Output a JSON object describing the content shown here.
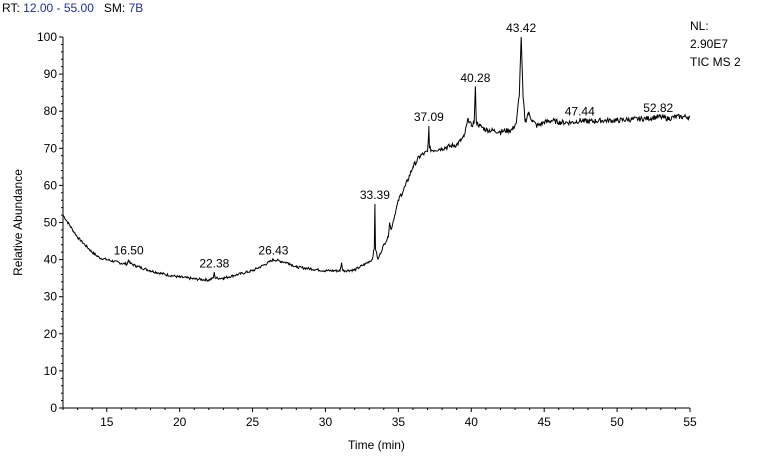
{
  "header": {
    "rt_label": "RT:",
    "rt_value": "12.00 - 55.00",
    "sm_label": "SM:",
    "sm_value": "7B"
  },
  "nl_info": {
    "line1": "NL:",
    "line2": "2.90E7",
    "line3": "TIC  MS 2"
  },
  "chart_data": {
    "type": "line",
    "xlabel": "Time (min)",
    "ylabel": "Relative Abundance",
    "xlim": [
      12,
      55
    ],
    "ylim": [
      0,
      100
    ],
    "x_ticks": [
      15,
      20,
      25,
      30,
      35,
      40,
      45,
      50,
      55
    ],
    "y_ticks": [
      0,
      10,
      20,
      30,
      40,
      50,
      60,
      70,
      80,
      90,
      100
    ],
    "line_color": "#000000",
    "series": [
      {
        "x": [
          12.0,
          12.5,
          13.0,
          13.5,
          14.0,
          14.5,
          15.0,
          15.5,
          16.0,
          16.4,
          16.5,
          16.6,
          17.0,
          18.0,
          19.0,
          20.0,
          21.0,
          22.0,
          22.3,
          22.38,
          22.45,
          23.0,
          24.0,
          25.0,
          25.5,
          26.0,
          26.43,
          27.0,
          27.5,
          28.0,
          29.0,
          30.0,
          31.0,
          31.1,
          31.2,
          32.0,
          32.8,
          33.2,
          33.35,
          33.39,
          33.43,
          33.6,
          34.0,
          34.3,
          34.4,
          34.5,
          35.0,
          35.5,
          36.0,
          36.5,
          37.0,
          37.05,
          37.09,
          37.13,
          37.3,
          38.0,
          39.0,
          39.5,
          39.8,
          40.0,
          40.2,
          40.28,
          40.35,
          40.6,
          41.0,
          42.0,
          42.8,
          43.1,
          43.3,
          43.42,
          43.55,
          43.7,
          43.9,
          44.2,
          44.5,
          45.0,
          45.5,
          46.0,
          47.0,
          47.44,
          48.0,
          49.0,
          50.0,
          51.0,
          52.0,
          52.82,
          53.5,
          54.0,
          55.0
        ],
        "y": [
          52.0,
          49.0,
          46.0,
          44.0,
          42.0,
          40.5,
          40.0,
          39.5,
          39.0,
          38.8,
          40.0,
          39.0,
          38.3,
          37.0,
          36.0,
          35.3,
          34.8,
          34.5,
          35.0,
          36.5,
          35.0,
          35.0,
          36.0,
          37.0,
          38.0,
          39.0,
          40.0,
          39.5,
          39.0,
          38.0,
          37.5,
          37.0,
          37.0,
          39.0,
          37.0,
          37.2,
          39.0,
          40.0,
          43.0,
          55.0,
          43.0,
          40.0,
          44.0,
          46.0,
          50.0,
          48.0,
          56.0,
          60.0,
          65.0,
          68.0,
          69.0,
          72.0,
          76.0,
          70.0,
          69.5,
          70.0,
          71.0,
          73.0,
          78.0,
          76.0,
          77.0,
          86.5,
          77.0,
          76.0,
          75.0,
          74.5,
          75.0,
          77.0,
          85.0,
          100.0,
          84.0,
          77.0,
          79.5,
          77.5,
          76.0,
          77.0,
          77.5,
          77.0,
          77.0,
          77.5,
          77.2,
          77.5,
          77.5,
          77.8,
          78.0,
          78.5,
          78.0,
          78.5,
          78.5
        ]
      }
    ],
    "annotations": [
      {
        "label": "16.50",
        "x": 16.5,
        "y": 40.0
      },
      {
        "label": "22.38",
        "x": 22.38,
        "y": 36.5
      },
      {
        "label": "26.43",
        "x": 26.43,
        "y": 40.0
      },
      {
        "label": "33.39",
        "x": 33.39,
        "y": 55.0
      },
      {
        "label": "37.09",
        "x": 37.09,
        "y": 76.0
      },
      {
        "label": "40.28",
        "x": 40.28,
        "y": 86.5
      },
      {
        "label": "43.42",
        "x": 43.42,
        "y": 100.0
      },
      {
        "label": "47.44",
        "x": 47.44,
        "y": 77.5
      },
      {
        "label": "52.82",
        "x": 52.82,
        "y": 78.5
      }
    ]
  }
}
